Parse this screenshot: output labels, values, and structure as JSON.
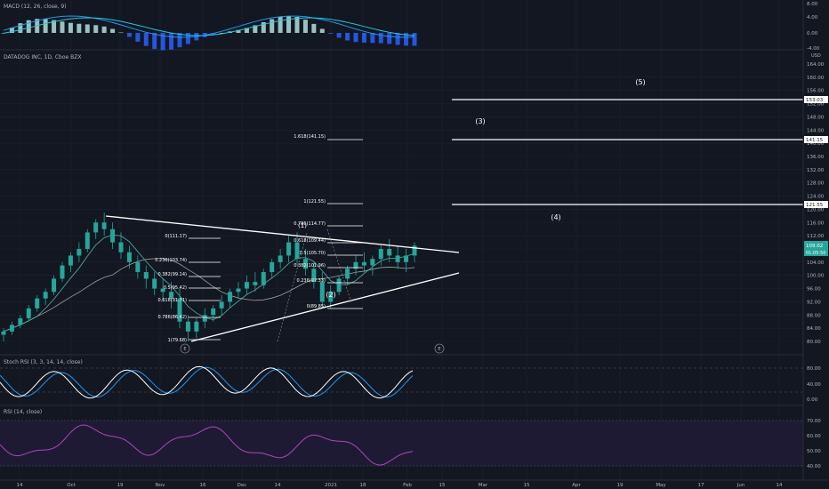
{
  "colors": {
    "background": "#131722",
    "grid": "#1c2030",
    "pane_border": "#2a2e39",
    "text": "#b2b5be",
    "white": "#ffffff",
    "candle": "#26a69a",
    "ma_fast": "#4db6ac",
    "ma_slow": "#9e9e9e",
    "macd_line": "#2196f3",
    "signal_line": "#26c6da",
    "stoch_k": "#ffffff",
    "stoch_d": "#2196f3",
    "rsi_line": "#ab47bc",
    "rsi_band": "#2a1d3f",
    "price_label": "#26a69a"
  },
  "panes": {
    "macd": {
      "title": "MACD (12, 26, close, 9)",
      "ticks": [
        "8.00",
        "4.00",
        "0.00",
        "-4.00"
      ]
    },
    "price": {
      "title": "DATADOG INC, 1D, Cboe BZX",
      "currency": "USD",
      "ticks": [
        "164.00",
        "160.00",
        "156.00",
        "152.00",
        "148.00",
        "144.00",
        "140.00",
        "136.00",
        "132.00",
        "128.00",
        "124.00",
        "120.00",
        "116.00",
        "112.00",
        "108.00",
        "104.00",
        "100.00",
        "96.00",
        "92.00",
        "88.00",
        "84.00",
        "80.00"
      ],
      "last_price": "109.02",
      "countdown": "01:05:50"
    },
    "stoch": {
      "title": "Stoch RSI (3, 3, 14, 14, close)",
      "ticks": [
        "80.00",
        "40.00",
        "0.00"
      ]
    },
    "rsi": {
      "title": "RSI (14, close)",
      "ticks": [
        "70.00",
        "60.00",
        "50.00",
        "40.00"
      ]
    }
  },
  "time_axis": [
    "14",
    "Oct",
    "19",
    "Nov",
    "16",
    "Dec",
    "14",
    "2021",
    "18",
    "Feb",
    "15",
    "Mar",
    "15",
    "Apr",
    "19",
    "May",
    "17",
    "Jun",
    "14"
  ],
  "fib_left": [
    "0(111.17)",
    "0.236(103.74)",
    "0.382(99.14)",
    "0.5(95.42)",
    "0.618(91.71)",
    "0.786(86.42)",
    "1(79.68)"
  ],
  "fib_right": [
    "1.618(141.15)",
    "1(121.55)",
    "0.786(114.77)",
    "0.618(109.44)",
    "0.5(105.70)",
    "0.382(101.96)",
    "0.236(97.33)",
    "0(89.85)"
  ],
  "targets": [
    {
      "label": "(5)",
      "price": "153.03"
    },
    {
      "label": "(3)",
      "price": "141.15"
    },
    {
      "label": "(4)",
      "price": "121.55"
    }
  ],
  "wave_labels": [
    "(1)",
    "(2)"
  ],
  "circle_labels": [
    "E",
    "E"
  ],
  "chart_data": {
    "type": "candlestick",
    "title": "DATADOG INC, 1D, Cboe BZX",
    "ylim": [
      78,
      168
    ],
    "ylabel": "USD",
    "ohlc_approx": [
      [
        82,
        84,
        80,
        83
      ],
      [
        83,
        86,
        82,
        85
      ],
      [
        85,
        88,
        84,
        87
      ],
      [
        87,
        91,
        86,
        90
      ],
      [
        90,
        94,
        89,
        93
      ],
      [
        93,
        96,
        91,
        95
      ],
      [
        95,
        100,
        94,
        99
      ],
      [
        99,
        104,
        98,
        103
      ],
      [
        103,
        107,
        101,
        106
      ],
      [
        106,
        110,
        104,
        108
      ],
      [
        108,
        114,
        107,
        113
      ],
      [
        113,
        117,
        111,
        116
      ],
      [
        116,
        119,
        112,
        114
      ],
      [
        114,
        116,
        108,
        110
      ],
      [
        110,
        113,
        105,
        107
      ],
      [
        107,
        109,
        102,
        104
      ],
      [
        104,
        106,
        99,
        101
      ],
      [
        101,
        103,
        96,
        99
      ],
      [
        99,
        101,
        94,
        96
      ],
      [
        96,
        99,
        92,
        95
      ],
      [
        95,
        98,
        90,
        93
      ],
      [
        93,
        96,
        84,
        86
      ],
      [
        86,
        88,
        80,
        83
      ],
      [
        83,
        87,
        81,
        86
      ],
      [
        86,
        90,
        84,
        88
      ],
      [
        88,
        91,
        86,
        90
      ],
      [
        90,
        94,
        88,
        92
      ],
      [
        92,
        96,
        90,
        95
      ],
      [
        95,
        98,
        93,
        96
      ],
      [
        96,
        100,
        94,
        98
      ],
      [
        98,
        101,
        95,
        97
      ],
      [
        97,
        102,
        96,
        101
      ],
      [
        101,
        105,
        99,
        104
      ],
      [
        104,
        108,
        102,
        106
      ],
      [
        106,
        112,
        104,
        110
      ],
      [
        110,
        113,
        103,
        105
      ],
      [
        105,
        108,
        100,
        102
      ],
      [
        102,
        104,
        96,
        98
      ],
      [
        98,
        101,
        90,
        92
      ],
      [
        92,
        97,
        90,
        95
      ],
      [
        95,
        100,
        94,
        99
      ],
      [
        99,
        103,
        97,
        102
      ],
      [
        102,
        106,
        100,
        104
      ],
      [
        104,
        107,
        101,
        103
      ],
      [
        103,
        106,
        100,
        105
      ],
      [
        105,
        109,
        103,
        108
      ],
      [
        108,
        111,
        104,
        106
      ],
      [
        106,
        109,
        102,
        104
      ],
      [
        104,
        108,
        101,
        106
      ],
      [
        106,
        110,
        104,
        109
      ]
    ]
  }
}
